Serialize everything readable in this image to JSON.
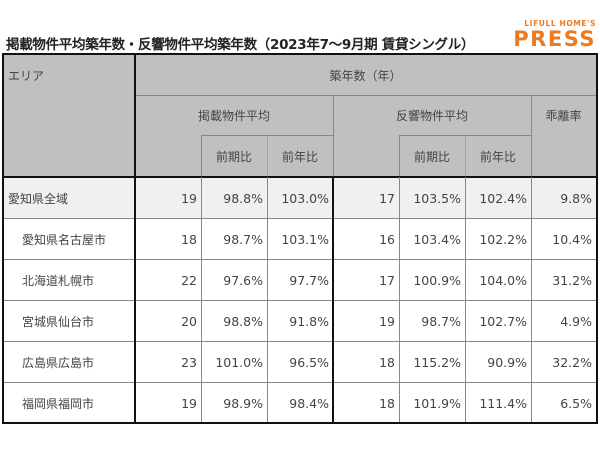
{
  "title": "掲載物件平均築年数・反響物件平均築年数（2023年7〜9月期 賃貸シングル）",
  "logo": {
    "top": "LIFULL HOME'S",
    "bottom": "PRESS",
    "color": "#ee7a1f"
  },
  "header": {
    "area": "エリア",
    "group": "築年数（年）",
    "listed": "掲載物件平均",
    "response": "反響物件平均",
    "divergence": "乖離率",
    "qoq": "前期比",
    "yoy": "前年比"
  },
  "rows": [
    {
      "area": "愛知県全域",
      "listed": "19",
      "listed_qoq": "98.8%",
      "listed_yoy": "103.0%",
      "resp": "17",
      "resp_qoq": "103.5%",
      "resp_yoy": "102.4%",
      "div": "9.8%"
    },
    {
      "area": "愛知県名古屋市",
      "listed": "18",
      "listed_qoq": "98.7%",
      "listed_yoy": "103.1%",
      "resp": "16",
      "resp_qoq": "103.4%",
      "resp_yoy": "102.2%",
      "div": "10.4%"
    },
    {
      "area": "北海道札幌市",
      "listed": "22",
      "listed_qoq": "97.6%",
      "listed_yoy": "97.7%",
      "resp": "17",
      "resp_qoq": "100.9%",
      "resp_yoy": "104.0%",
      "div": "31.2%"
    },
    {
      "area": "宮城県仙台市",
      "listed": "20",
      "listed_qoq": "98.8%",
      "listed_yoy": "91.8%",
      "resp": "19",
      "resp_qoq": "98.7%",
      "resp_yoy": "102.7%",
      "div": "4.9%"
    },
    {
      "area": "広島県広島市",
      "listed": "23",
      "listed_qoq": "101.0%",
      "listed_yoy": "96.5%",
      "resp": "18",
      "resp_qoq": "115.2%",
      "resp_yoy": "90.9%",
      "div": "32.2%"
    },
    {
      "area": "福岡県福岡市",
      "listed": "19",
      "listed_qoq": "98.9%",
      "listed_yoy": "98.4%",
      "resp": "18",
      "resp_qoq": "101.9%",
      "resp_yoy": "111.4%",
      "div": "6.5%"
    }
  ],
  "colors": {
    "header_bg": "#c0c0c0",
    "highlight_row_bg": "#f0f0f0",
    "border": "#111111",
    "grid": "#888888"
  },
  "chart_data": {
    "type": "table",
    "title": "掲載物件平均築年数・反響物件平均築年数（2023年7〜9月期 賃貸シングル）",
    "columns": [
      "エリア",
      "掲載物件平均(年)",
      "掲載 前期比",
      "掲載 前年比",
      "反響物件平均(年)",
      "反響 前期比",
      "反響 前年比",
      "乖離率"
    ],
    "rows": [
      [
        "愛知県全域",
        19,
        "98.8%",
        "103.0%",
        17,
        "103.5%",
        "102.4%",
        "9.8%"
      ],
      [
        "愛知県名古屋市",
        18,
        "98.7%",
        "103.1%",
        16,
        "103.4%",
        "102.2%",
        "10.4%"
      ],
      [
        "北海道札幌市",
        22,
        "97.6%",
        "97.7%",
        17,
        "100.9%",
        "104.0%",
        "31.2%"
      ],
      [
        "宮城県仙台市",
        20,
        "98.8%",
        "91.8%",
        19,
        "98.7%",
        "102.7%",
        "4.9%"
      ],
      [
        "広島県広島市",
        23,
        "101.0%",
        "96.5%",
        18,
        "115.2%",
        "90.9%",
        "32.2%"
      ],
      [
        "福岡県福岡市",
        19,
        "98.9%",
        "98.4%",
        18,
        "101.9%",
        "111.4%",
        "6.5%"
      ]
    ]
  }
}
